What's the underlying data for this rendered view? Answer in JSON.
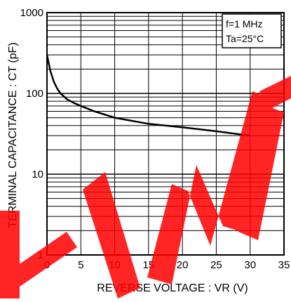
{
  "chart_data": {
    "type": "line",
    "title": "",
    "xlabel": "REVERSE VOLTAGE : VR (V)",
    "ylabel": "TERMINAL CAPACITANCE : CT (pF)",
    "x_scale": "linear",
    "y_scale": "log",
    "xlim": [
      0,
      35
    ],
    "ylim": [
      1,
      1000
    ],
    "x_ticks": [
      "0",
      "5",
      "10",
      "15",
      "20",
      "25",
      "30",
      "35"
    ],
    "y_ticks": [
      "1",
      "10",
      "100",
      "1000"
    ],
    "grid": true,
    "legend_position": "top-right",
    "annotations": [
      "f=1 MHz",
      "Ta=25°C"
    ],
    "series": [
      {
        "name": "",
        "x": [
          0,
          0.5,
          1,
          1.5,
          2,
          3,
          4,
          5,
          7,
          10,
          15,
          20,
          25,
          30
        ],
        "y": [
          300,
          190,
          140,
          115,
          100,
          84,
          76,
          70,
          60,
          50,
          42,
          38,
          34,
          30
        ]
      }
    ],
    "watermark": "LIMIT",
    "colors": {
      "line": "#000000",
      "grid": "#000000",
      "watermark": "#ff0000"
    }
  }
}
